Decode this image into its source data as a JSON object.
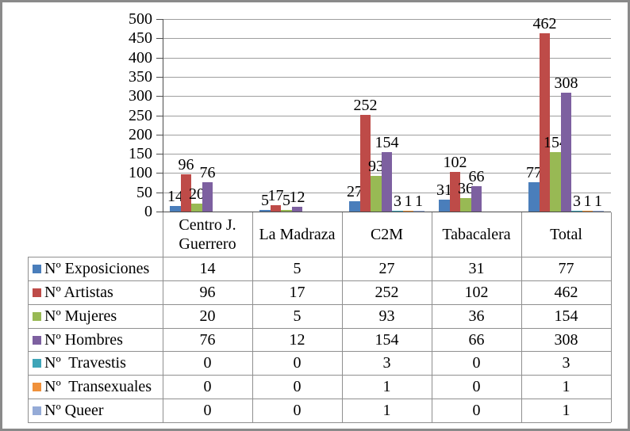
{
  "chart_data": {
    "type": "bar",
    "title": "",
    "categories": [
      "Centro J. Guerrero",
      "La Madraza",
      "C2M",
      "Tabacalera",
      "Total"
    ],
    "series": [
      {
        "name": "Nº Exposiciones",
        "color": "#4A7EBB",
        "values": [
          14,
          5,
          27,
          31,
          77
        ]
      },
      {
        "name": "Nº Artistas",
        "color": "#BE4B48",
        "values": [
          96,
          17,
          252,
          102,
          462
        ]
      },
      {
        "name": "Nº Mujeres",
        "color": "#98B954",
        "values": [
          20,
          5,
          93,
          36,
          154
        ]
      },
      {
        "name": "Nº Hombres",
        "color": "#7D60A0",
        "values": [
          76,
          12,
          154,
          66,
          308
        ]
      },
      {
        "name": "Nº  Travestis",
        "color": "#3EA5B8",
        "values": [
          0,
          0,
          3,
          0,
          3
        ]
      },
      {
        "name": "Nº  Transexuales",
        "color": "#F0913B",
        "values": [
          0,
          0,
          1,
          0,
          1
        ]
      },
      {
        "name": "Nº Queer",
        "color": "#95ABD7",
        "values": [
          0,
          0,
          1,
          0,
          1
        ]
      }
    ],
    "xlabel": "",
    "ylabel": "",
    "ylim": [
      0,
      500
    ],
    "yticks": [
      0,
      50,
      100,
      150,
      200,
      250,
      300,
      350,
      400,
      450,
      500
    ],
    "grid": true,
    "legend_position": "data-table-left-column",
    "data_labels": "values shown above bars; zero values unlabeled",
    "table_below_chart": true
  },
  "style": {
    "axis_color": "#4d4d4d",
    "gridline_color": "#9e9e9e",
    "table_border_color": "#8f8f8f",
    "frame_border_color": "#8a8a8a",
    "text_color": "#000000",
    "background": "#ffffff"
  }
}
